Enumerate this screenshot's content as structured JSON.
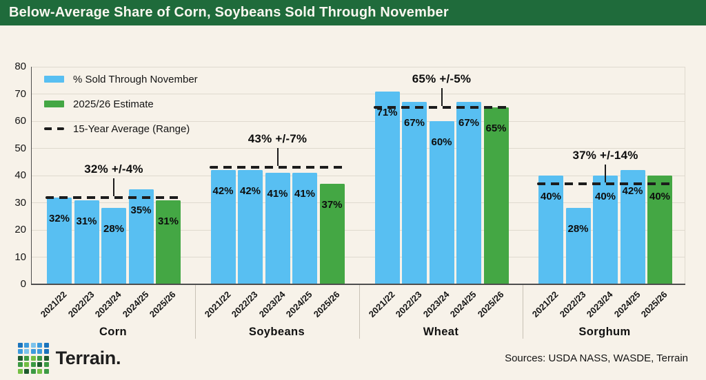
{
  "title_bar": {
    "title": "Below-Average Share of Corn, Soybeans Sold Through November"
  },
  "legend": [
    {
      "label": "% Sold Through November",
      "swatch": "blue"
    },
    {
      "label": "2025/26 Estimate",
      "swatch": "green"
    },
    {
      "label": "15-Year Average (Range)",
      "swatch": "dash"
    }
  ],
  "chart_data": {
    "type": "bar",
    "title": "Below-Average Share of Corn, Soybeans Sold Through November",
    "categories": [
      "2021/22",
      "2022/23",
      "2023/24",
      "2024/25",
      "2025/26"
    ],
    "ylim": [
      0,
      80
    ],
    "yticks": [
      0,
      10,
      20,
      30,
      40,
      50,
      60,
      70,
      80
    ],
    "grid": true,
    "legend_position": "top-left",
    "series_meta": {
      "sold": {
        "name": "% Sold Through November",
        "color": "#58BFF2"
      },
      "estimate": {
        "name": "2025/26 Estimate",
        "color": "#44A744"
      },
      "average": {
        "name": "15-Year Average (Range)",
        "style": "dashed",
        "color": "#1C1C1C"
      }
    },
    "estimate_index": 4,
    "groups": [
      {
        "name": "Corn",
        "values": [
          32,
          31,
          28,
          35,
          31
        ],
        "bar_labels": [
          "32%",
          "31%",
          "28%",
          "35%",
          "31%"
        ],
        "average": 32,
        "annotation": "32% +/-4%"
      },
      {
        "name": "Soybeans",
        "values": [
          42,
          42,
          41,
          41,
          37
        ],
        "bar_labels": [
          "42%",
          "42%",
          "41%",
          "41%",
          "37%"
        ],
        "average": 43,
        "annotation": "43% +/-7%"
      },
      {
        "name": "Wheat",
        "values": [
          71,
          67,
          60,
          67,
          65
        ],
        "bar_labels": [
          "71%",
          "67%",
          "60%",
          "67%",
          "65%"
        ],
        "average": 65,
        "annotation": "65% +/-5%"
      },
      {
        "name": "Sorghum",
        "values": [
          40,
          28,
          40,
          42,
          40
        ],
        "bar_labels": [
          "40%",
          "28%",
          "40%",
          "42%",
          "40%"
        ],
        "average": 37,
        "annotation": "37% +/-14%"
      }
    ]
  },
  "footer": {
    "brand": "Terrain.",
    "sources": "Sources: USDA NASS, WASDE, Terrain",
    "logo_palette": {
      "b1": "#1B74BC",
      "b2": "#3D9BDC",
      "b3": "#7CC3EC",
      "g1": "#1E5B2D",
      "g2": "#3C9A44",
      "g3": "#74BF44"
    },
    "logo_pattern": [
      [
        "b1",
        "b2",
        "b3",
        "b2",
        "b1"
      ],
      [
        "b2",
        "b3",
        "b2",
        "b2",
        "b1"
      ],
      [
        "g1",
        "g2",
        "g3",
        "g2",
        "g1"
      ],
      [
        "g2",
        "g3",
        "g2",
        "g1",
        "g2"
      ],
      [
        "g3",
        "g1",
        "g2",
        "g3",
        "g2"
      ]
    ]
  },
  "colors": {
    "background": "#F7F2E9",
    "header_bg": "#1F6B3B",
    "bar_blue": "#58BFF2",
    "bar_green": "#44A744",
    "average_line": "#1C1C1C"
  }
}
